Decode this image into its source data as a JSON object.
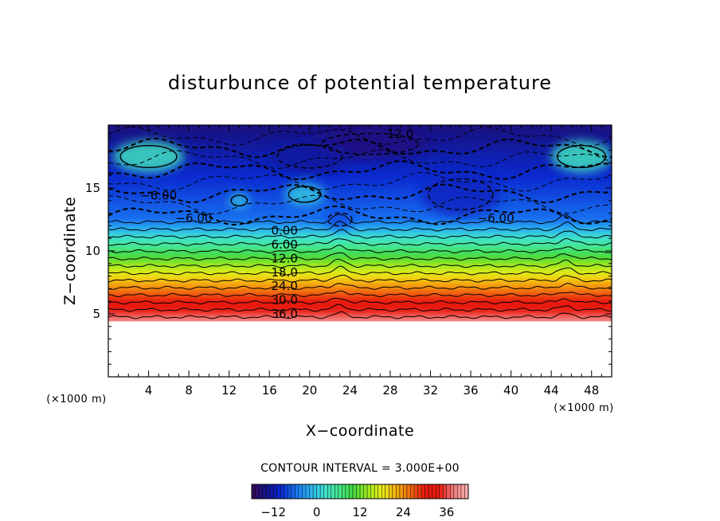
{
  "chart_data": {
    "type": "heatmap",
    "title": "disturbunce of potential temperature",
    "xlabel": "X−coordinate",
    "ylabel": "Z−coordinate",
    "x_unit_left": "(×1000 m)",
    "x_unit_right": "(×1000 m)",
    "xlim": [
      0,
      50
    ],
    "ylim": [
      0,
      20
    ],
    "x_ticks": [
      4,
      8,
      12,
      16,
      20,
      24,
      28,
      32,
      36,
      40,
      44,
      48
    ],
    "y_ticks": [
      5,
      10,
      15
    ],
    "contour_interval_text": "CONTOUR INTERVAL = 3.000E+00",
    "contour_interval": 3,
    "data_bottom_z": 4.4,
    "value_range": [
      -18,
      42
    ],
    "colorbar_ticks": [
      -12,
      0,
      12,
      24,
      36
    ],
    "colorbar_colors": [
      "#3a0a5a",
      "#14148c",
      "#0a2ad0",
      "#1870f0",
      "#2aaef0",
      "#3ee0d0",
      "#46e890",
      "#40d840",
      "#9ae820",
      "#e8ec18",
      "#f5b010",
      "#f06a10",
      "#e81a10",
      "#e81a10",
      "#f28080",
      "#f6b0b0"
    ],
    "contour_labels": [
      {
        "text": "12.0",
        "x": 29.0,
        "z": 19.3
      },
      {
        "text": "−6.00",
        "x": 5.0,
        "z": 14.4
      },
      {
        "text": "−6.00",
        "x": 8.5,
        "z": 12.6
      },
      {
        "text": "−6.00",
        "x": 38.5,
        "z": 12.6
      },
      {
        "text": "0.00",
        "x": 17.5,
        "z": 11.6
      },
      {
        "text": "6.00",
        "x": 17.5,
        "z": 10.5
      },
      {
        "text": "12.0",
        "x": 17.5,
        "z": 9.4
      },
      {
        "text": "18.0",
        "x": 17.5,
        "z": 8.3
      },
      {
        "text": "24.0",
        "x": 17.5,
        "z": 7.2
      },
      {
        "text": "30.0",
        "x": 17.5,
        "z": 6.1
      },
      {
        "text": "36.0",
        "x": 17.5,
        "z": 5.0
      }
    ],
    "disturbance_regions": [
      {
        "x": 4.0,
        "z": 17.5,
        "w": 7.0,
        "h": 2.5,
        "value": 3
      },
      {
        "x": 47.0,
        "z": 17.5,
        "w": 6.0,
        "h": 2.5,
        "value": 3
      },
      {
        "x": 13.0,
        "z": 14.0,
        "w": 2.0,
        "h": 1.2,
        "value": 0
      },
      {
        "x": 19.5,
        "z": 14.5,
        "w": 4.0,
        "h": 1.8,
        "value": 0
      },
      {
        "x": 26.0,
        "z": 18.5,
        "w": 12.0,
        "h": 2.4,
        "value": -15
      },
      {
        "x": 20.0,
        "z": 17.5,
        "w": 8.0,
        "h": 2.6,
        "value": -13
      },
      {
        "x": 35.0,
        "z": 14.5,
        "w": 8.0,
        "h": 3.5,
        "value": -11
      },
      {
        "x": 23.0,
        "z": 12.5,
        "w": 3.0,
        "h": 1.5,
        "value": -8
      }
    ],
    "ridges": [
      {
        "x": 23.0,
        "amplitude": 0.6
      },
      {
        "x": 45.5,
        "amplitude": 0.5
      }
    ]
  }
}
